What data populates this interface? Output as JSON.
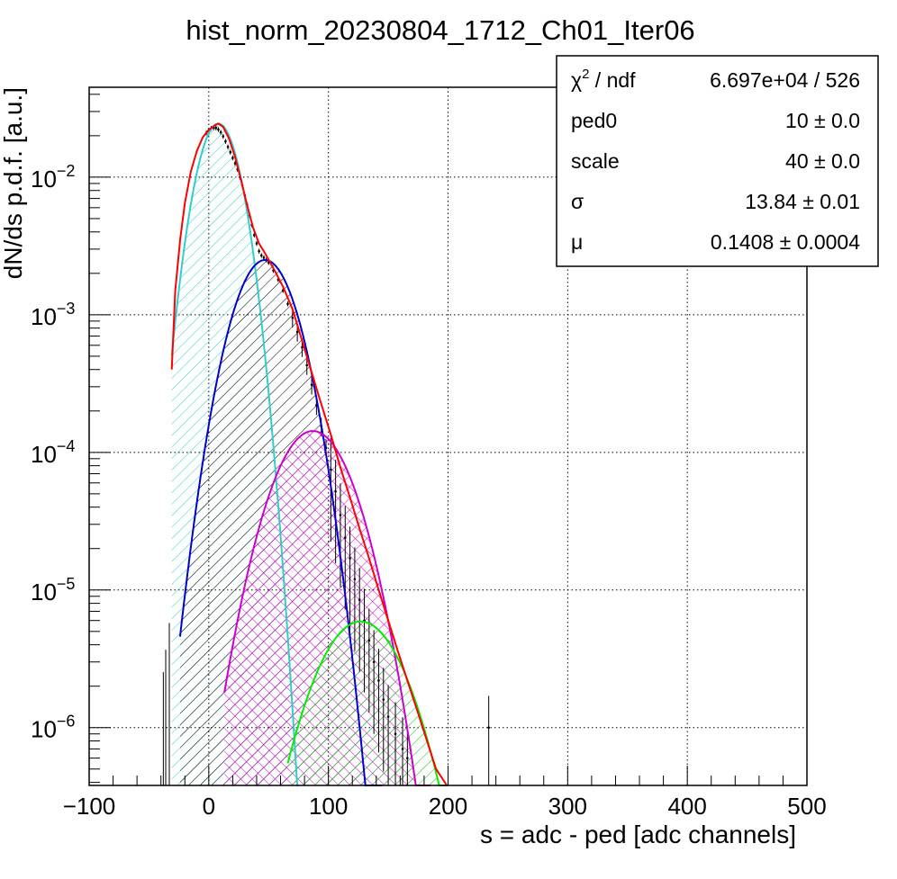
{
  "chart_data": {
    "type": "line",
    "title": "hist_norm_20230804_1712_Ch01_Iter06",
    "xlabel": "s = adc - ped [adc channels]",
    "ylabel": "dN/ds p.d.f. [a.u.]",
    "xlim": [
      -100,
      500
    ],
    "ylim": [
      3.8e-07,
      0.045
    ],
    "y_scale": "log",
    "grid": true,
    "x_ticks": [
      "−100",
      "0",
      "100",
      "200",
      "300",
      "400",
      "500"
    ],
    "x_tick_values": [
      -100,
      0,
      100,
      200,
      300,
      400,
      500
    ],
    "y_ticks": [
      {
        "base": "10",
        "exp": "−6",
        "value": 1e-06
      },
      {
        "base": "10",
        "exp": "−5",
        "value": 1e-05
      },
      {
        "base": "10",
        "exp": "−4",
        "value": 0.0001
      },
      {
        "base": "10",
        "exp": "−3",
        "value": 0.001
      },
      {
        "base": "10",
        "exp": "−2",
        "value": 0.01
      }
    ],
    "stats": [
      {
        "name": "χ² / ndf",
        "value": "6.697e+04 / 526"
      },
      {
        "name": "ped0",
        "value": "10 ± 0.0"
      },
      {
        "name": "scale",
        "value": "40 ± 0.0"
      },
      {
        "name": "σ",
        "value": "13.84 ± 0.01"
      },
      {
        "name": "μ",
        "value": "0.1408 ± 0.0004"
      }
    ],
    "stats_header": {
      "chi_base": "χ",
      "chi_exp": "2",
      "chi_rest": " / ndf"
    },
    "colors": {
      "total_fit": "#ff0000",
      "pe0": "#33cccc",
      "pe1": "#0000cc",
      "pe2": "#cc00cc",
      "pe3": "#00ee00",
      "data": "#000000",
      "grid": "#000000",
      "hatch_pe0": "#33cccc",
      "hatch_pe1": "#000000",
      "hatch_pe2": "#cc00cc",
      "hatch_pe3": "#00cc00"
    },
    "components": {
      "pe0": {
        "peak_x": 8,
        "peak_y": 0.0245,
        "sigma": 14,
        "x_range": [
          -31,
          75
        ]
      },
      "pe1": {
        "peak_x": 47,
        "peak_y": 0.0025,
        "sigma": 20,
        "x_range": [
          -24,
          145
        ]
      },
      "pe2": {
        "peak_x": 87,
        "peak_y": 0.000143,
        "sigma": 25,
        "x_range": [
          13,
          185
        ]
      },
      "pe3": {
        "peak_x": 127,
        "peak_y": 5.9e-06,
        "sigma": 28,
        "x_range": [
          66,
          200
        ]
      }
    },
    "total_fit_points": [
      [
        -31,
        0.0004
      ],
      [
        -28,
        0.0015
      ],
      [
        -24,
        0.0035
      ],
      [
        -20,
        0.0065
      ],
      [
        -15,
        0.011
      ],
      [
        -10,
        0.0155
      ],
      [
        -5,
        0.0195
      ],
      [
        0,
        0.022
      ],
      [
        5,
        0.0238
      ],
      [
        8,
        0.0245
      ],
      [
        12,
        0.0232
      ],
      [
        17,
        0.019
      ],
      [
        22,
        0.014
      ],
      [
        27,
        0.0095
      ],
      [
        32,
        0.0063
      ],
      [
        37,
        0.0043
      ],
      [
        42,
        0.0033
      ],
      [
        47,
        0.0028
      ],
      [
        55,
        0.0021
      ],
      [
        62,
        0.0016
      ],
      [
        70,
        0.0011
      ],
      [
        78,
        0.00065
      ],
      [
        86,
        0.00038
      ],
      [
        94,
        0.000225
      ],
      [
        102,
        0.000135
      ],
      [
        110,
        7.8e-05
      ],
      [
        118,
        4.7e-05
      ],
      [
        126,
        2.8e-05
      ],
      [
        134,
        1.7e-05
      ],
      [
        142,
        1e-05
      ],
      [
        150,
        6e-06
      ],
      [
        158,
        3.6e-06
      ],
      [
        166,
        2.2e-06
      ],
      [
        174,
        1.35e-06
      ],
      [
        182,
        8.2e-07
      ],
      [
        190,
        5e-07
      ],
      [
        199,
        3.8e-07
      ]
    ],
    "data_points": [
      [
        -2,
        0.021
      ],
      [
        0,
        0.022
      ],
      [
        2,
        0.0226
      ],
      [
        4,
        0.0229
      ],
      [
        6,
        0.0228
      ],
      [
        8,
        0.0222
      ],
      [
        10,
        0.0212
      ],
      [
        12,
        0.0198
      ],
      [
        14,
        0.0182
      ],
      [
        16,
        0.0166
      ],
      [
        18,
        0.0152
      ],
      [
        20,
        0.0138
      ],
      [
        22,
        0.0126
      ],
      [
        24,
        0.0114
      ],
      [
        26,
        0.01
      ],
      [
        28,
        0.0087
      ],
      [
        30,
        0.0074
      ],
      [
        32,
        0.0063
      ],
      [
        34,
        0.0053
      ],
      [
        36,
        0.0045
      ],
      [
        38,
        0.0038
      ],
      [
        40,
        0.0033
      ],
      [
        42,
        0.0029
      ],
      [
        44,
        0.0027
      ],
      [
        46,
        0.0026
      ],
      [
        48,
        0.0025
      ],
      [
        50,
        0.0024
      ],
      [
        54,
        0.0021
      ],
      [
        58,
        0.0018
      ],
      [
        62,
        0.0015
      ],
      [
        66,
        0.0012
      ],
      [
        70,
        0.00095
      ],
      [
        74,
        0.00075
      ],
      [
        78,
        0.00058
      ],
      [
        82,
        0.00043
      ],
      [
        86,
        0.00031
      ],
      [
        90,
        0.00022
      ],
      [
        94,
        0.000155
      ],
      [
        98,
        0.000108
      ],
      [
        102,
        7.5e-05
      ],
      [
        106,
        5.2e-05
      ],
      [
        110,
        3.5e-05
      ],
      [
        114,
        2.4e-05
      ],
      [
        118,
        1.7e-05
      ],
      [
        122,
        1.2e-05
      ],
      [
        126,
        8.5e-06
      ],
      [
        130,
        6e-06
      ],
      [
        134,
        4.3e-06
      ],
      [
        138,
        3e-06
      ],
      [
        142,
        2.2e-06
      ],
      [
        146,
        1.6e-06
      ],
      [
        150,
        1.2e-06
      ],
      [
        156,
        9e-07
      ],
      [
        162,
        7e-07
      ],
      [
        166,
        6e-07
      ],
      [
        234,
        1e-06
      ]
    ]
  }
}
